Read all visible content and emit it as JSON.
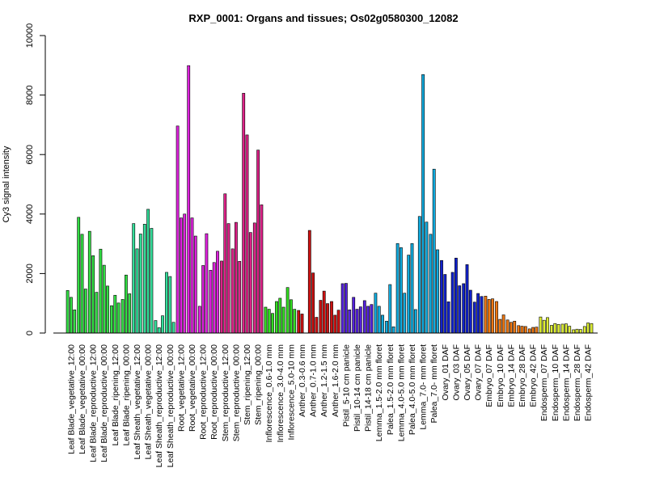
{
  "chart_data": {
    "type": "bar",
    "title": "RXP_0001: Organs and tissues; Os02g0580300_12082",
    "xlabel": "",
    "ylabel": "Cy3 signal intensity",
    "ylim": [
      0,
      10000
    ],
    "yticks": [
      0,
      2000,
      4000,
      6000,
      8000,
      10000
    ],
    "grid": false,
    "groups": [
      {
        "label": "Leaf Blade_vegetative_12:00",
        "color": "#33dd44",
        "values": [
          1430,
          1200,
          780
        ]
      },
      {
        "label": "Leaf Blade_vegetative_00:00",
        "color": "#33dd44",
        "values": [
          3890,
          3320,
          1480
        ]
      },
      {
        "label": "Leaf Blade_reproductive_12:00",
        "color": "#33dd44",
        "values": [
          3420,
          2600,
          1370
        ]
      },
      {
        "label": "Leaf Blade_reproductive_00:00",
        "color": "#33dd44",
        "values": [
          2820,
          2280,
          1580
        ]
      },
      {
        "label": "Leaf Blade_ripening_12:00",
        "color": "#33dd44",
        "values": [
          920,
          1270,
          1010
        ]
      },
      {
        "label": "Leaf Blade_ripening_00:00",
        "color": "#33dd44",
        "values": [
          1130,
          1950,
          1320
        ]
      },
      {
        "label": "Leaf Sheath_vegetative_12:00",
        "color": "#33dd99",
        "values": [
          3680,
          2830,
          3330
        ]
      },
      {
        "label": "Leaf Sheath_vegetative_00:00",
        "color": "#33dd99",
        "values": [
          3660,
          4160,
          3520
        ]
      },
      {
        "label": "Leaf Sheath_reproductive_12:00",
        "color": "#33dd99",
        "values": [
          420,
          180,
          580
        ]
      },
      {
        "label": "Leaf Sheath_reproductive_00:00",
        "color": "#33dd99",
        "values": [
          2040,
          1900,
          360
        ]
      },
      {
        "label": "Root_vegetative_12:00",
        "color": "#dd22dd",
        "values": [
          6960,
          3870,
          4000
        ]
      },
      {
        "label": "Root_vegetative_00:00",
        "color": "#dd22dd",
        "values": [
          8990,
          3870,
          3260
        ]
      },
      {
        "label": "Root_reproductive_12:00",
        "color": "#dd22dd",
        "values": [
          900,
          2270,
          3340
        ]
      },
      {
        "label": "Root_reproductive_00:00",
        "color": "#dd22dd",
        "values": [
          2110,
          2370,
          2750
        ]
      },
      {
        "label": "Stem_reproductive_12:00",
        "color": "#dd2288",
        "values": [
          2420,
          4680,
          3680
        ]
      },
      {
        "label": "Stem_reproductive_00:00",
        "color": "#dd2288",
        "values": [
          2830,
          3720,
          2410
        ]
      },
      {
        "label": "Stem_ripening_12:00",
        "color": "#dd2288",
        "values": [
          8060,
          6660,
          3380
        ]
      },
      {
        "label": "Stem_ripening_00:00",
        "color": "#dd2288",
        "values": [
          3700,
          6150,
          4310
        ]
      },
      {
        "label": "Inflorescence_0.6-1.0 mm",
        "color": "#33dd22",
        "values": [
          870,
          800,
          660
        ]
      },
      {
        "label": "Inflorescence_3.0-4.0 mm",
        "color": "#33dd22",
        "values": [
          1060,
          1170,
          870
        ]
      },
      {
        "label": "Inflorescence_5.0-10 mm",
        "color": "#33dd22",
        "values": [
          1530,
          1120,
          800
        ]
      },
      {
        "label": "Anther_0.3-0.6 mm",
        "color": "#cc1111",
        "values": [
          760,
          640,
          0
        ]
      },
      {
        "label": "Anther_0.7-1.0 mm",
        "color": "#cc1111",
        "values": [
          3450,
          2020,
          530
        ]
      },
      {
        "label": "Anther_1.2-1.5 mm",
        "color": "#cc1111",
        "values": [
          1100,
          1410,
          990
        ]
      },
      {
        "label": "Anther_1.6-2.0 mm",
        "color": "#cc1111",
        "values": [
          1060,
          600,
          770
        ]
      },
      {
        "label": "Pistil_5-10 cm panicle",
        "color": "#5522dd",
        "values": [
          1660,
          1670,
          780
        ]
      },
      {
        "label": "Pistil_10-14 cm panicle",
        "color": "#5522dd",
        "values": [
          1200,
          800,
          880
        ]
      },
      {
        "label": "Pistil_14-18 cm panicle",
        "color": "#5522dd",
        "values": [
          1090,
          900,
          960
        ]
      },
      {
        "label": "Lemma_1.5-2.0 mm floret",
        "color": "#11aadd",
        "values": [
          1340,
          900,
          600
        ]
      },
      {
        "label": "Palea_1.5-2.0 mm floret",
        "color": "#11aadd",
        "values": [
          400,
          1630,
          210
        ]
      },
      {
        "label": "Lemma_4.0-5.0 mm floret",
        "color": "#11aadd",
        "values": [
          3010,
          2870,
          1340
        ]
      },
      {
        "label": "Palea_4.0-5.0 mm floret",
        "color": "#11aadd",
        "values": [
          2620,
          3010,
          790
        ]
      },
      {
        "label": "Lemma_7.0- mm floret",
        "color": "#11aadd",
        "values": [
          3920,
          8690,
          3730
        ]
      },
      {
        "label": "Palea_7.0- mm floret",
        "color": "#11aadd",
        "values": [
          3320,
          5510,
          2800
        ]
      },
      {
        "label": "Ovary_01 DAF",
        "color": "#1122cc",
        "values": [
          2440,
          1970,
          1050
        ]
      },
      {
        "label": "Ovary_03 DAF",
        "color": "#1122cc",
        "values": [
          2040,
          2520,
          1590
        ]
      },
      {
        "label": "Ovary_05 DAF",
        "color": "#1122cc",
        "values": [
          1660,
          2300,
          1440
        ]
      },
      {
        "label": "Ovary_07 DAF",
        "color": "#1122cc",
        "values": [
          1040,
          1330,
          1230
        ]
      },
      {
        "label": "Embryo_07 DAF",
        "color": "#ee7711",
        "values": [
          1240,
          1130,
          1150
        ]
      },
      {
        "label": "Embryo_10 DAF",
        "color": "#ee7711",
        "values": [
          1060,
          460,
          610
        ]
      },
      {
        "label": "Embryo_14 DAF",
        "color": "#ee7711",
        "values": [
          440,
          360,
          400
        ]
      },
      {
        "label": "Embryo_28 DAF",
        "color": "#ee7711",
        "values": [
          250,
          230,
          220
        ]
      },
      {
        "label": "Embryo_42 DAF",
        "color": "#ee7711",
        "values": [
          140,
          190,
          200
        ]
      },
      {
        "label": "Endosperm_07 DAF",
        "color": "#ddee33",
        "values": [
          540,
          430,
          520
        ]
      },
      {
        "label": "Endosperm_10 DAF",
        "color": "#ddee33",
        "values": [
          260,
          320,
          290
        ]
      },
      {
        "label": "Endosperm_14 DAF",
        "color": "#ddee33",
        "values": [
          300,
          310,
          230
        ]
      },
      {
        "label": "Endosperm_28 DAF",
        "color": "#ddee33",
        "values": [
          110,
          130,
          120
        ]
      },
      {
        "label": "Endosperm_42 DAF",
        "color": "#ddee33",
        "values": [
          220,
          340,
          320
        ]
      }
    ]
  }
}
